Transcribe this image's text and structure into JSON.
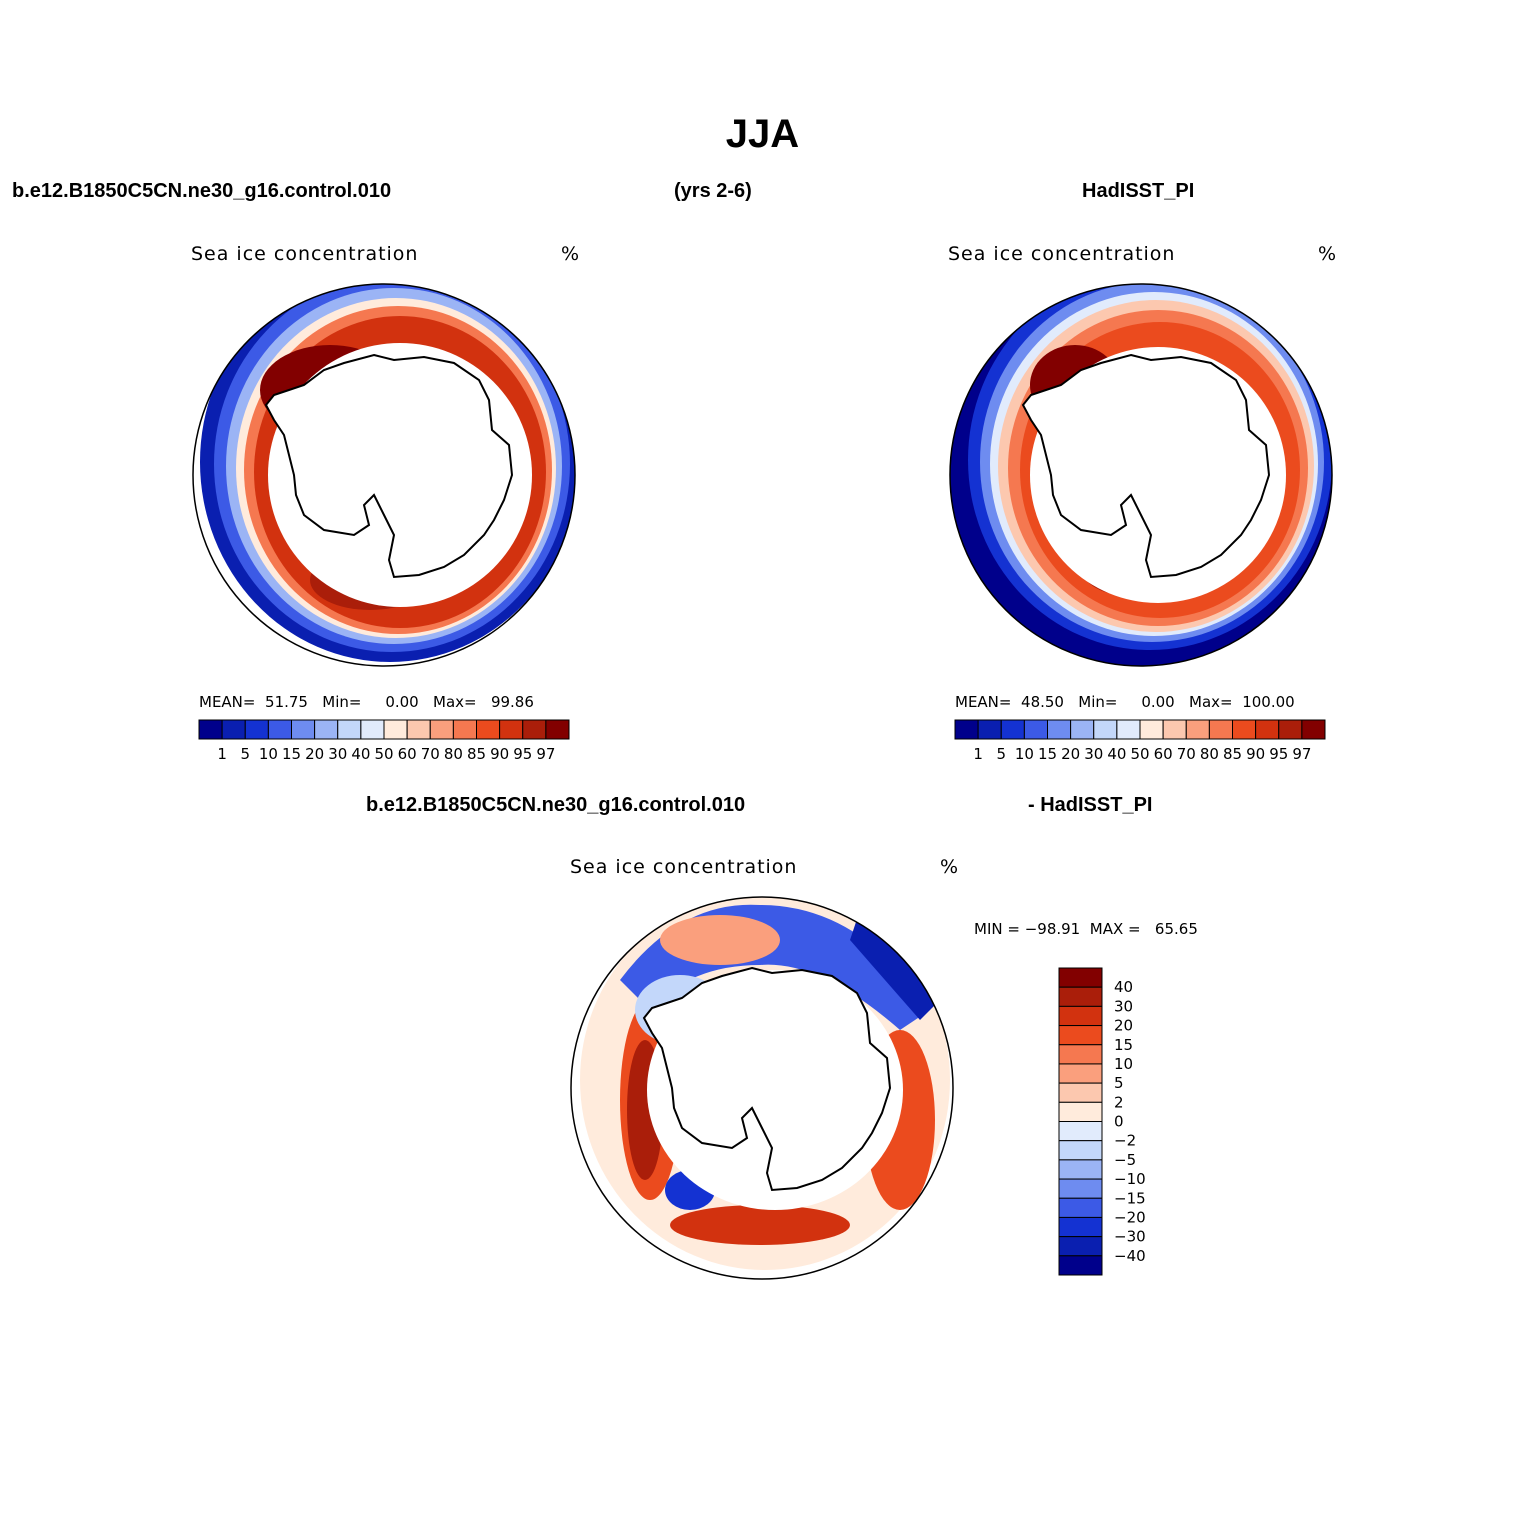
{
  "title": "JJA",
  "headers": {
    "case": "b.e12.B1850C5CN.ne30_g16.control.010",
    "years": "(yrs 2-6)",
    "obs": "HadISST_PI",
    "diff_case": "b.e12.B1850C5CN.ne30_g16.control.010",
    "diff_obs": "- HadISST_PI"
  },
  "panels": [
    {
      "variable": "Sea ice concentration",
      "units": "%",
      "stats": {
        "mean_label": "MEAN=",
        "mean": "51.75",
        "min_label": "Min=",
        "min": "0.00",
        "max_label": "Max=",
        "max": "99.86"
      }
    },
    {
      "variable": "Sea ice concentration",
      "units": "%",
      "stats": {
        "mean_label": "MEAN=",
        "mean": "48.50",
        "min_label": "Min=",
        "min": "0.00",
        "max_label": "Max=",
        "max": "100.00"
      }
    },
    {
      "variable": "Sea ice concentration",
      "units": "%",
      "stats": {
        "min_label": "MIN =",
        "min": "−98.91",
        "max_label": "MAX =",
        "max": "65.65"
      }
    }
  ],
  "colorbar_abs": {
    "labels": [
      "1",
      "5",
      "10",
      "15",
      "20",
      "30",
      "40",
      "50",
      "60",
      "70",
      "80",
      "85",
      "90",
      "95",
      "97"
    ],
    "colors": [
      "#00008b",
      "#0a1fb0",
      "#1432d2",
      "#3c5ae6",
      "#6e8cf0",
      "#9bb4f5",
      "#c3d7fa",
      "#e1ebfc",
      "#ffebdc",
      "#fcc8af",
      "#fa9f7d",
      "#f57850",
      "#eb4b1e",
      "#d2320f",
      "#aa1e0a",
      "#820000"
    ]
  },
  "colorbar_diff": {
    "labels": [
      "40",
      "30",
      "20",
      "15",
      "10",
      "5",
      "2",
      "0",
      "−2",
      "−5",
      "−10",
      "−15",
      "−20",
      "−30",
      "−40"
    ],
    "colors": [
      "#820000",
      "#aa1e0a",
      "#d2320f",
      "#eb4b1e",
      "#f57850",
      "#fa9f7d",
      "#fcc8af",
      "#ffebdc",
      "#e1ebfc",
      "#c3d7fa",
      "#9bb4f5",
      "#6e8cf0",
      "#3c5ae6",
      "#1432d2",
      "#0a1fb0",
      "#00008b"
    ]
  }
}
